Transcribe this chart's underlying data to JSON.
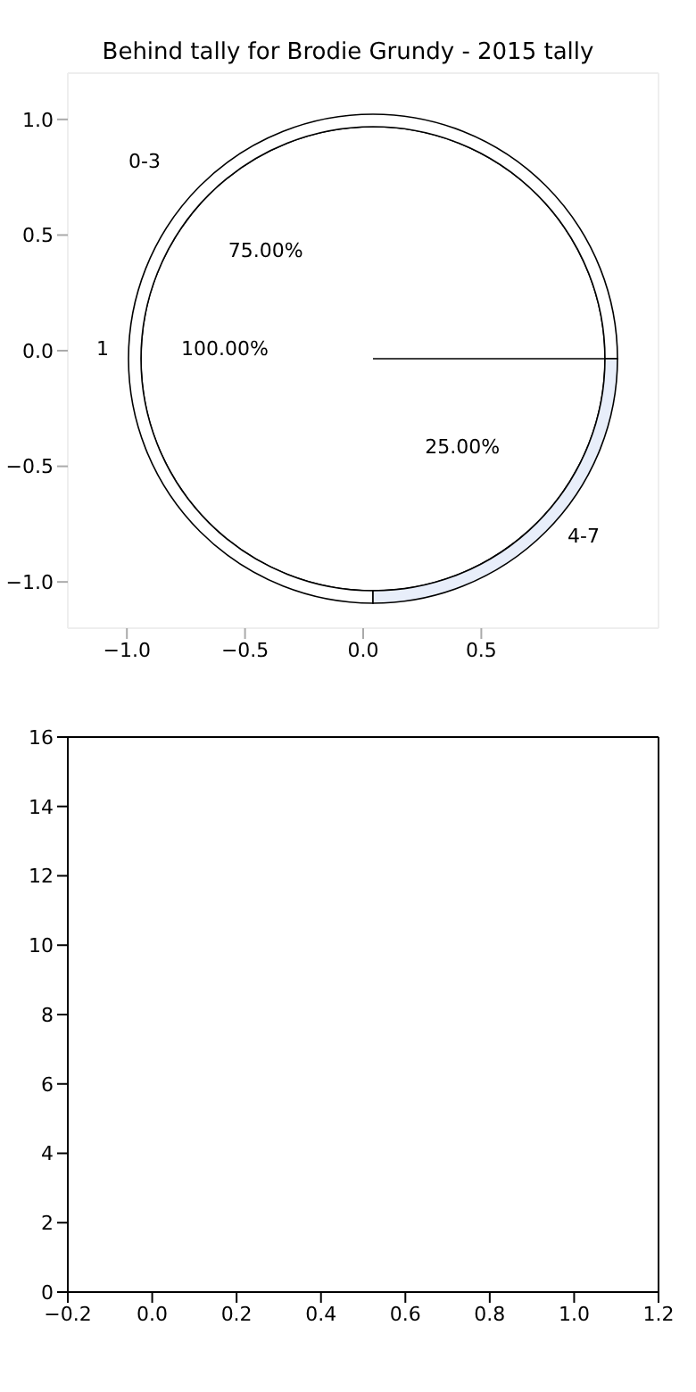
{
  "chart_data": [
    {
      "type": "scatter",
      "title": "Behind tally for Brodie Grundy - 2015 tally",
      "xlim": [
        -1.25,
        1.25
      ],
      "xticks": [
        {
          "value": -1,
          "label": "−1.0"
        },
        {
          "value": -0.5,
          "label": "−0.5"
        },
        {
          "value": 0,
          "label": "0.0"
        },
        {
          "value": 0.5,
          "label": "0.5"
        }
      ],
      "ylim": [
        -1.2,
        1.2
      ],
      "yticks": [
        {
          "value": 1,
          "label": "1.0"
        },
        {
          "value": 0.5,
          "label": "0.5"
        },
        {
          "value": 0,
          "label": "0.0"
        },
        {
          "value": -0.5,
          "label": "−0.5"
        },
        {
          "value": -1,
          "label": "−1.0"
        }
      ]
    },
    {
      "type": "donut",
      "categories": [
        "0-3",
        "4-7"
      ],
      "values": [
        75,
        25
      ],
      "colors": [
        "#ffffff",
        "#e8eefa"
      ],
      "value_labels": [
        "75.00%",
        "25.00%"
      ]
    },
    {
      "type": "pie",
      "categories": [
        "1"
      ],
      "values": [
        100
      ],
      "colors": [
        "#ffffff"
      ],
      "value_labels": [
        "100.00%"
      ]
    },
    {
      "type": "scatter",
      "xlim": [
        -0.2,
        1.2
      ],
      "xticks": [
        {
          "value": -0.2,
          "label": "−0.2"
        },
        {
          "value": 0,
          "label": "0.0"
        },
        {
          "value": 0.2,
          "label": "0.2"
        },
        {
          "value": 0.4,
          "label": "0.4"
        },
        {
          "value": 0.6,
          "label": "0.6"
        },
        {
          "value": 0.8,
          "label": "0.8"
        },
        {
          "value": 1,
          "label": "1.0"
        },
        {
          "value": 1.2,
          "label": "1.2"
        }
      ],
      "ylim": [
        0,
        16
      ],
      "yticks": [
        0,
        2,
        4,
        6,
        8,
        10,
        12,
        14,
        16
      ]
    }
  ]
}
